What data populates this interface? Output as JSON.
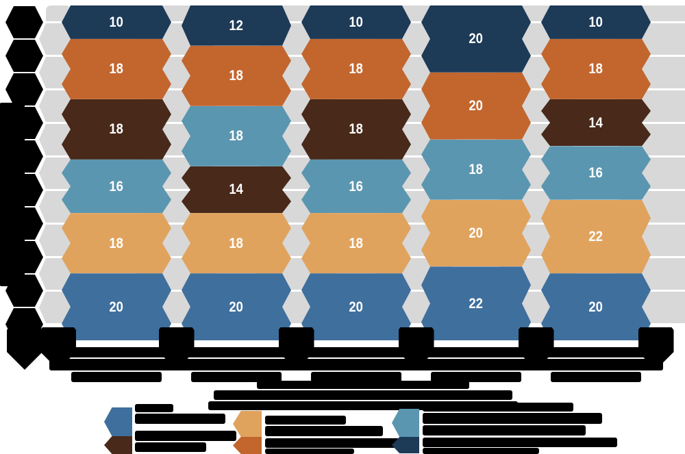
{
  "meta": {
    "description": "Infographic-style 100% stacked column chart built from chevron/hexagon segments on a gray chevron lattice. Every black text element (axis title, column labels, caption, legend labels) is illegible in the source pixels and is reproduced as redacted black blocks.",
    "background": "#ffffff"
  },
  "colors": {
    "navy": "#1d3a57",
    "dark-orange": "#c2662e",
    "brown": "#48291a",
    "light-blue": "#5b96b0",
    "tan": "#e0a35e",
    "steel-blue": "#3f6f9d",
    "cell-gray": "#d8d8d8",
    "redaction": "#000000",
    "value-text": "#ffffff"
  },
  "chart_data": {
    "type": "bar",
    "variant": "100%-stacked-chevron-columns",
    "stack_total": 100,
    "categories": [
      "",
      "",
      "",
      "",
      ""
    ],
    "categories_redacted": true,
    "series": [
      {
        "name": "navy",
        "values": [
          10,
          12,
          10,
          20,
          10
        ]
      },
      {
        "name": "dark-orange",
        "values": [
          18,
          18,
          18,
          20,
          18
        ]
      },
      {
        "name": "brown",
        "values": [
          18,
          14,
          18,
          0,
          14
        ]
      },
      {
        "name": "light-blue",
        "values": [
          16,
          18,
          16,
          18,
          16
        ]
      },
      {
        "name": "tan",
        "values": [
          18,
          18,
          18,
          20,
          22
        ]
      },
      {
        "name": "steel-blue",
        "values": [
          20,
          20,
          20,
          22,
          20
        ]
      }
    ],
    "stacks": [
      [
        {
          "series": "navy",
          "value": 10
        },
        {
          "series": "dark-orange",
          "value": 18
        },
        {
          "series": "brown",
          "value": 18
        },
        {
          "series": "light-blue",
          "value": 16
        },
        {
          "series": "tan",
          "value": 18
        },
        {
          "series": "steel-blue",
          "value": 20
        }
      ],
      [
        {
          "series": "navy",
          "value": 12
        },
        {
          "series": "dark-orange",
          "value": 18
        },
        {
          "series": "light-blue",
          "value": 18
        },
        {
          "series": "brown",
          "value": 14
        },
        {
          "series": "tan",
          "value": 18
        },
        {
          "series": "steel-blue",
          "value": 20
        }
      ],
      [
        {
          "series": "navy",
          "value": 10
        },
        {
          "series": "dark-orange",
          "value": 18
        },
        {
          "series": "brown",
          "value": 18
        },
        {
          "series": "light-blue",
          "value": 16
        },
        {
          "series": "tan",
          "value": 18
        },
        {
          "series": "steel-blue",
          "value": 20
        }
      ],
      [
        {
          "series": "navy",
          "value": 20
        },
        {
          "series": "dark-orange",
          "value": 20
        },
        {
          "series": "light-blue",
          "value": 18
        },
        {
          "series": "tan",
          "value": 20
        },
        {
          "series": "steel-blue",
          "value": 22
        }
      ],
      [
        {
          "series": "navy",
          "value": 10
        },
        {
          "series": "dark-orange",
          "value": 18
        },
        {
          "series": "brown",
          "value": 14
        },
        {
          "series": "light-blue",
          "value": 16
        },
        {
          "series": "tan",
          "value": 22
        },
        {
          "series": "steel-blue",
          "value": 20
        }
      ]
    ],
    "value_labels_shown": true,
    "legend_position": "bottom",
    "legend_groups": [
      {
        "swatches": [
          "steel-blue",
          "brown"
        ],
        "label": "",
        "label_redacted": true
      },
      {
        "swatches": [
          "tan",
          "dark-orange"
        ],
        "label": "",
        "label_redacted": true
      },
      {
        "swatches": [
          "light-blue",
          "navy"
        ],
        "label": "",
        "label_redacted": true
      }
    ],
    "caption": "",
    "caption_redacted": true,
    "y_axis_title": "",
    "y_axis_title_redacted": true,
    "grid": "gray chevron lattice columns between data columns",
    "xlabel": "",
    "ylabel": ""
  }
}
